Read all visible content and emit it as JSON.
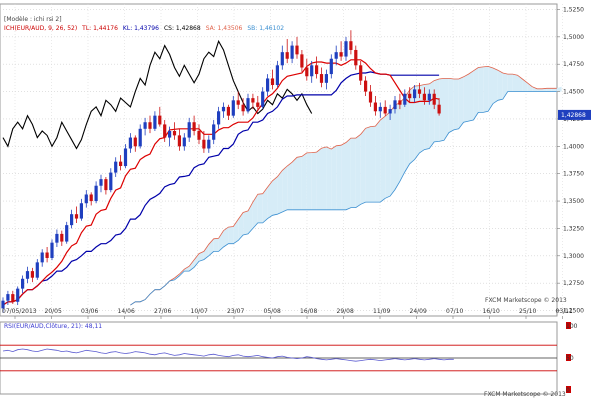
{
  "header": {
    "model_label": "[Modèle : ichi rsi 2]",
    "legend": [
      {
        "text": "ICH(EUR/AUD, 9, 26, 52)",
        "color": "#cc0000"
      },
      {
        "text": "TL: 1,44176",
        "color": "#cc0000"
      },
      {
        "text": "KL: 1,43796",
        "color": "#0000aa"
      },
      {
        "text": "CS: 1,42868",
        "color": "#000000"
      },
      {
        "text": "SA: 1,43506",
        "color": "#e0624a"
      },
      {
        "text": "SB: 1,46102",
        "color": "#3b8fd1"
      }
    ]
  },
  "rsi_header": {
    "text": "RSI(EUR/AUD,Clôture, 21): 48,11",
    "color": "#3a3ad0"
  },
  "watermark": "FXCM Marketscope © 2013",
  "colors": {
    "up_candle": "#1f3fbf",
    "down_candle": "#cc1010",
    "tenkan": "#dd0000",
    "kijun": "#0000aa",
    "chikou": "#000000",
    "span_a": "#e0624a",
    "span_b": "#3b8fd1",
    "kumo_bull": "#d6ecf7",
    "kumo_bear": "#fbe0d6",
    "rsi_line": "#5a5ad0",
    "rsi_level": "#cc0000",
    "last_price_bg": "#1f3fbf",
    "rsi_marker": "#cc0000"
  },
  "chart_data": [
    {
      "type": "candlestick-ichimoku",
      "symbol": "EUR/AUD",
      "ylim": [
        1.245,
        1.53
      ],
      "y_ticks": [
        "1,5250",
        "1,5000",
        "1,4750",
        "1,4500",
        "1,4250",
        "1,4000",
        "1,3750",
        "1,3500",
        "1,3250",
        "1,3000",
        "1,2750",
        "1,2500"
      ],
      "last_price": "1,42868",
      "x_ticks": [
        "07/05/2013",
        "20/05",
        "03/06",
        "14/06",
        "27/06",
        "10/07",
        "23/07",
        "05/08",
        "16/08",
        "29/08",
        "11/09",
        "24/09",
        "07/10",
        "16/10",
        "25/10",
        "03/11"
      ],
      "candles": [
        [
          1.252,
          1.262,
          1.248,
          1.259
        ],
        [
          1.259,
          1.268,
          1.255,
          1.265
        ],
        [
          1.265,
          1.268,
          1.256,
          1.258
        ],
        [
          1.258,
          1.272,
          1.255,
          1.27
        ],
        [
          1.27,
          1.282,
          1.266,
          1.279
        ],
        [
          1.279,
          1.29,
          1.275,
          1.286
        ],
        [
          1.286,
          1.289,
          1.276,
          1.28
        ],
        [
          1.28,
          1.297,
          1.278,
          1.294
        ],
        [
          1.294,
          1.306,
          1.29,
          1.303
        ],
        [
          1.303,
          1.308,
          1.294,
          1.298
        ],
        [
          1.298,
          1.315,
          1.296,
          1.312
        ],
        [
          1.312,
          1.324,
          1.308,
          1.32
        ],
        [
          1.32,
          1.323,
          1.309,
          1.313
        ],
        [
          1.313,
          1.331,
          1.311,
          1.328
        ],
        [
          1.328,
          1.342,
          1.325,
          1.338
        ],
        [
          1.338,
          1.345,
          1.33,
          1.334
        ],
        [
          1.334,
          1.352,
          1.332,
          1.348
        ],
        [
          1.348,
          1.36,
          1.344,
          1.356
        ],
        [
          1.356,
          1.358,
          1.346,
          1.35
        ],
        [
          1.35,
          1.368,
          1.348,
          1.364
        ],
        [
          1.364,
          1.374,
          1.358,
          1.37
        ],
        [
          1.37,
          1.372,
          1.356,
          1.36
        ],
        [
          1.36,
          1.38,
          1.358,
          1.376
        ],
        [
          1.376,
          1.39,
          1.372,
          1.386
        ],
        [
          1.386,
          1.392,
          1.378,
          1.382
        ],
        [
          1.382,
          1.402,
          1.38,
          1.398
        ],
        [
          1.398,
          1.412,
          1.394,
          1.408
        ],
        [
          1.408,
          1.41,
          1.395,
          1.4
        ],
        [
          1.4,
          1.42,
          1.398,
          1.416
        ],
        [
          1.416,
          1.426,
          1.41,
          1.422
        ],
        [
          1.422,
          1.428,
          1.412,
          1.416
        ],
        [
          1.416,
          1.432,
          1.414,
          1.428
        ],
        [
          1.428,
          1.436,
          1.418,
          1.42
        ],
        [
          1.42,
          1.424,
          1.404,
          1.408
        ],
        [
          1.408,
          1.418,
          1.4,
          1.414
        ],
        [
          1.414,
          1.422,
          1.406,
          1.41
        ],
        [
          1.41,
          1.416,
          1.396,
          1.4
        ],
        [
          1.4,
          1.412,
          1.396,
          1.408
        ],
        [
          1.408,
          1.426,
          1.404,
          1.422
        ],
        [
          1.422,
          1.428,
          1.41,
          1.414
        ],
        [
          1.414,
          1.42,
          1.402,
          1.406
        ],
        [
          1.406,
          1.414,
          1.394,
          1.398
        ],
        [
          1.398,
          1.41,
          1.394,
          1.406
        ],
        [
          1.406,
          1.424,
          1.402,
          1.42
        ],
        [
          1.42,
          1.436,
          1.416,
          1.432
        ],
        [
          1.432,
          1.44,
          1.426,
          1.436
        ],
        [
          1.436,
          1.438,
          1.424,
          1.428
        ],
        [
          1.428,
          1.446,
          1.426,
          1.442
        ],
        [
          1.442,
          1.45,
          1.434,
          1.438
        ],
        [
          1.438,
          1.444,
          1.428,
          1.432
        ],
        [
          1.432,
          1.448,
          1.43,
          1.444
        ],
        [
          1.444,
          1.448,
          1.434,
          1.44
        ],
        [
          1.44,
          1.446,
          1.432,
          1.436
        ],
        [
          1.436,
          1.454,
          1.434,
          1.45
        ],
        [
          1.45,
          1.466,
          1.446,
          1.462
        ],
        [
          1.462,
          1.47,
          1.452,
          1.456
        ],
        [
          1.456,
          1.478,
          1.454,
          1.474
        ],
        [
          1.474,
          1.492,
          1.47,
          1.486
        ],
        [
          1.486,
          1.498,
          1.476,
          1.48
        ],
        [
          1.48,
          1.496,
          1.476,
          1.492
        ],
        [
          1.492,
          1.5,
          1.48,
          1.484
        ],
        [
          1.484,
          1.488,
          1.468,
          1.472
        ],
        [
          1.472,
          1.48,
          1.46,
          1.464
        ],
        [
          1.464,
          1.478,
          1.458,
          1.474
        ],
        [
          1.474,
          1.482,
          1.462,
          1.466
        ],
        [
          1.466,
          1.472,
          1.454,
          1.458
        ],
        [
          1.458,
          1.47,
          1.452,
          1.466
        ],
        [
          1.466,
          1.484,
          1.462,
          1.48
        ],
        [
          1.48,
          1.492,
          1.474,
          1.486
        ],
        [
          1.486,
          1.496,
          1.478,
          1.482
        ],
        [
          1.482,
          1.5,
          1.478,
          1.496
        ],
        [
          1.496,
          1.506,
          1.484,
          1.488
        ],
        [
          1.488,
          1.492,
          1.47,
          1.474
        ],
        [
          1.474,
          1.478,
          1.456,
          1.46
        ],
        [
          1.46,
          1.464,
          1.446,
          1.45
        ],
        [
          1.45,
          1.456,
          1.436,
          1.44
        ],
        [
          1.44,
          1.446,
          1.428,
          1.432
        ],
        [
          1.432,
          1.44,
          1.426,
          1.436
        ],
        [
          1.436,
          1.442,
          1.428,
          1.43
        ],
        [
          1.43,
          1.438,
          1.424,
          1.434
        ],
        [
          1.434,
          1.446,
          1.43,
          1.442
        ],
        [
          1.442,
          1.448,
          1.434,
          1.438
        ],
        [
          1.438,
          1.452,
          1.436,
          1.448
        ],
        [
          1.448,
          1.454,
          1.44,
          1.444
        ],
        [
          1.444,
          1.456,
          1.44,
          1.452
        ],
        [
          1.452,
          1.458,
          1.444,
          1.448
        ],
        [
          1.448,
          1.454,
          1.438,
          1.442
        ],
        [
          1.442,
          1.452,
          1.438,
          1.448
        ],
        [
          1.448,
          1.452,
          1.434,
          1.438
        ],
        [
          1.438,
          1.444,
          1.428,
          1.43
        ]
      ]
    },
    {
      "type": "line",
      "name": "RSI",
      "ylim": [
        0,
        100
      ],
      "levels": [
        30,
        50,
        70
      ],
      "y_ticks": [
        "100",
        "50",
        "0"
      ],
      "values": [
        61,
        62,
        60,
        63,
        64,
        63,
        61,
        60,
        62,
        64,
        63,
        62,
        60,
        61,
        59,
        58,
        60,
        62,
        61,
        60,
        58,
        57,
        59,
        60,
        58,
        57,
        58,
        60,
        59,
        58,
        56,
        55,
        57,
        58,
        56,
        54,
        55,
        57,
        56,
        55,
        54,
        53,
        55,
        56,
        54,
        53,
        52,
        54,
        55,
        53,
        52,
        53,
        54,
        52,
        51,
        50,
        52,
        53,
        51,
        50,
        49,
        50,
        52,
        51,
        49,
        48,
        47,
        48,
        49,
        48,
        47,
        46,
        45,
        46,
        47,
        48,
        47,
        46,
        47,
        48,
        49,
        48,
        47,
        48,
        49,
        48,
        47,
        48,
        49,
        48,
        47,
        48,
        48
      ]
    }
  ]
}
